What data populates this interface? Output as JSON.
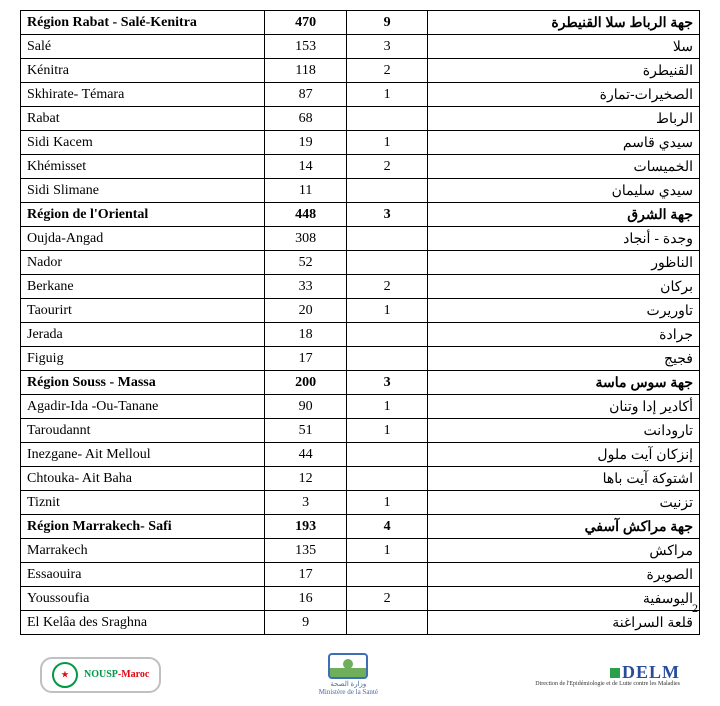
{
  "colors": {
    "border": "#000000",
    "background": "#ffffff",
    "nousp_green": "#009944",
    "nousp_red": "#e30613",
    "ministry_blue": "#3c6fb3",
    "ministry_green": "#6fae5b",
    "delm_blue": "#2a4d9b",
    "delm_green": "#2aa04a"
  },
  "page_number": "2",
  "footer": {
    "nousp_label": "NOUSP",
    "nousp_suffix": "-Maroc",
    "ministry_ar": "وزارة الصحة",
    "ministry_fr": "Ministère de la Santé",
    "delm_label": "DELM",
    "delm_sub": "Direction de l'Epidémiologie et de Lutte contre les Maladies"
  },
  "sections": [
    {
      "fr": "Région Rabat - Salé-Kenitra",
      "v1": "470",
      "v2": "9",
      "ar": "جهة الرباط سلا القنيطرة",
      "rows": [
        {
          "fr": "Salé",
          "v1": "153",
          "v2": "3",
          "ar": "سلا"
        },
        {
          "fr": "Kénitra",
          "v1": "118",
          "v2": "2",
          "ar": "القنيطرة"
        },
        {
          "fr": "Skhirate- Témara",
          "v1": "87",
          "v2": "1",
          "ar": "الصخيرات-تمارة"
        },
        {
          "fr": "Rabat",
          "v1": "68",
          "v2": "",
          "ar": "الرباط"
        },
        {
          "fr": "Sidi Kacem",
          "v1": "19",
          "v2": "1",
          "ar": "سيدي قاسم"
        },
        {
          "fr": "Khémisset",
          "v1": "14",
          "v2": "2",
          "ar": "الخميسات"
        },
        {
          "fr": "Sidi Slimane",
          "v1": "11",
          "v2": "",
          "ar": "سيدي سليمان"
        }
      ]
    },
    {
      "fr": "Région de l'Oriental",
      "v1": "448",
      "v2": "3",
      "ar": "جهة الشرق",
      "rows": [
        {
          "fr": "Oujda-Angad",
          "v1": "308",
          "v2": "",
          "ar": "وجدة - أنجاد"
        },
        {
          "fr": "Nador",
          "v1": "52",
          "v2": "",
          "ar": "الناظور"
        },
        {
          "fr": "Berkane",
          "v1": "33",
          "v2": "2",
          "ar": "بركان"
        },
        {
          "fr": "Taourirt",
          "v1": "20",
          "v2": "1",
          "ar": "تاوريرت"
        },
        {
          "fr": "Jerada",
          "v1": "18",
          "v2": "",
          "ar": "جرادة"
        },
        {
          "fr": "Figuig",
          "v1": "17",
          "v2": "",
          "ar": "فجيج"
        }
      ]
    },
    {
      "fr": "Région Souss - Massa",
      "v1": "200",
      "v2": "3",
      "ar": "جهة سوس ماسة",
      "rows": [
        {
          "fr": "Agadir-Ida -Ou-Tanane",
          "v1": "90",
          "v2": "1",
          "ar": "أكادير إدا وتنان"
        },
        {
          "fr": "Taroudannt",
          "v1": "51",
          "v2": "1",
          "ar": "تارودانت"
        },
        {
          "fr": "Inezgane- Ait Melloul",
          "v1": "44",
          "v2": "",
          "ar": "إنزكان آيت ملول"
        },
        {
          "fr": "Chtouka- Ait Baha",
          "v1": "12",
          "v2": "",
          "ar": "اشتوكة آيت باها"
        },
        {
          "fr": "Tiznit",
          "v1": "3",
          "v2": "1",
          "ar": "تزنيت"
        }
      ]
    },
    {
      "fr": "Région Marrakech- Safi",
      "v1": "193",
      "v2": "4",
      "ar": "جهة مراكش آسفي",
      "rows": [
        {
          "fr": "Marrakech",
          "v1": "135",
          "v2": "1",
          "ar": "مراكش"
        },
        {
          "fr": "Essaouira",
          "v1": "17",
          "v2": "",
          "ar": "الصويرة"
        },
        {
          "fr": "Youssoufia",
          "v1": "16",
          "v2": "2",
          "ar": "اليوسفية"
        },
        {
          "fr": "El Kelâa des  Sraghna",
          "v1": "9",
          "v2": "",
          "ar": "قلعة السراغنة"
        }
      ]
    }
  ]
}
